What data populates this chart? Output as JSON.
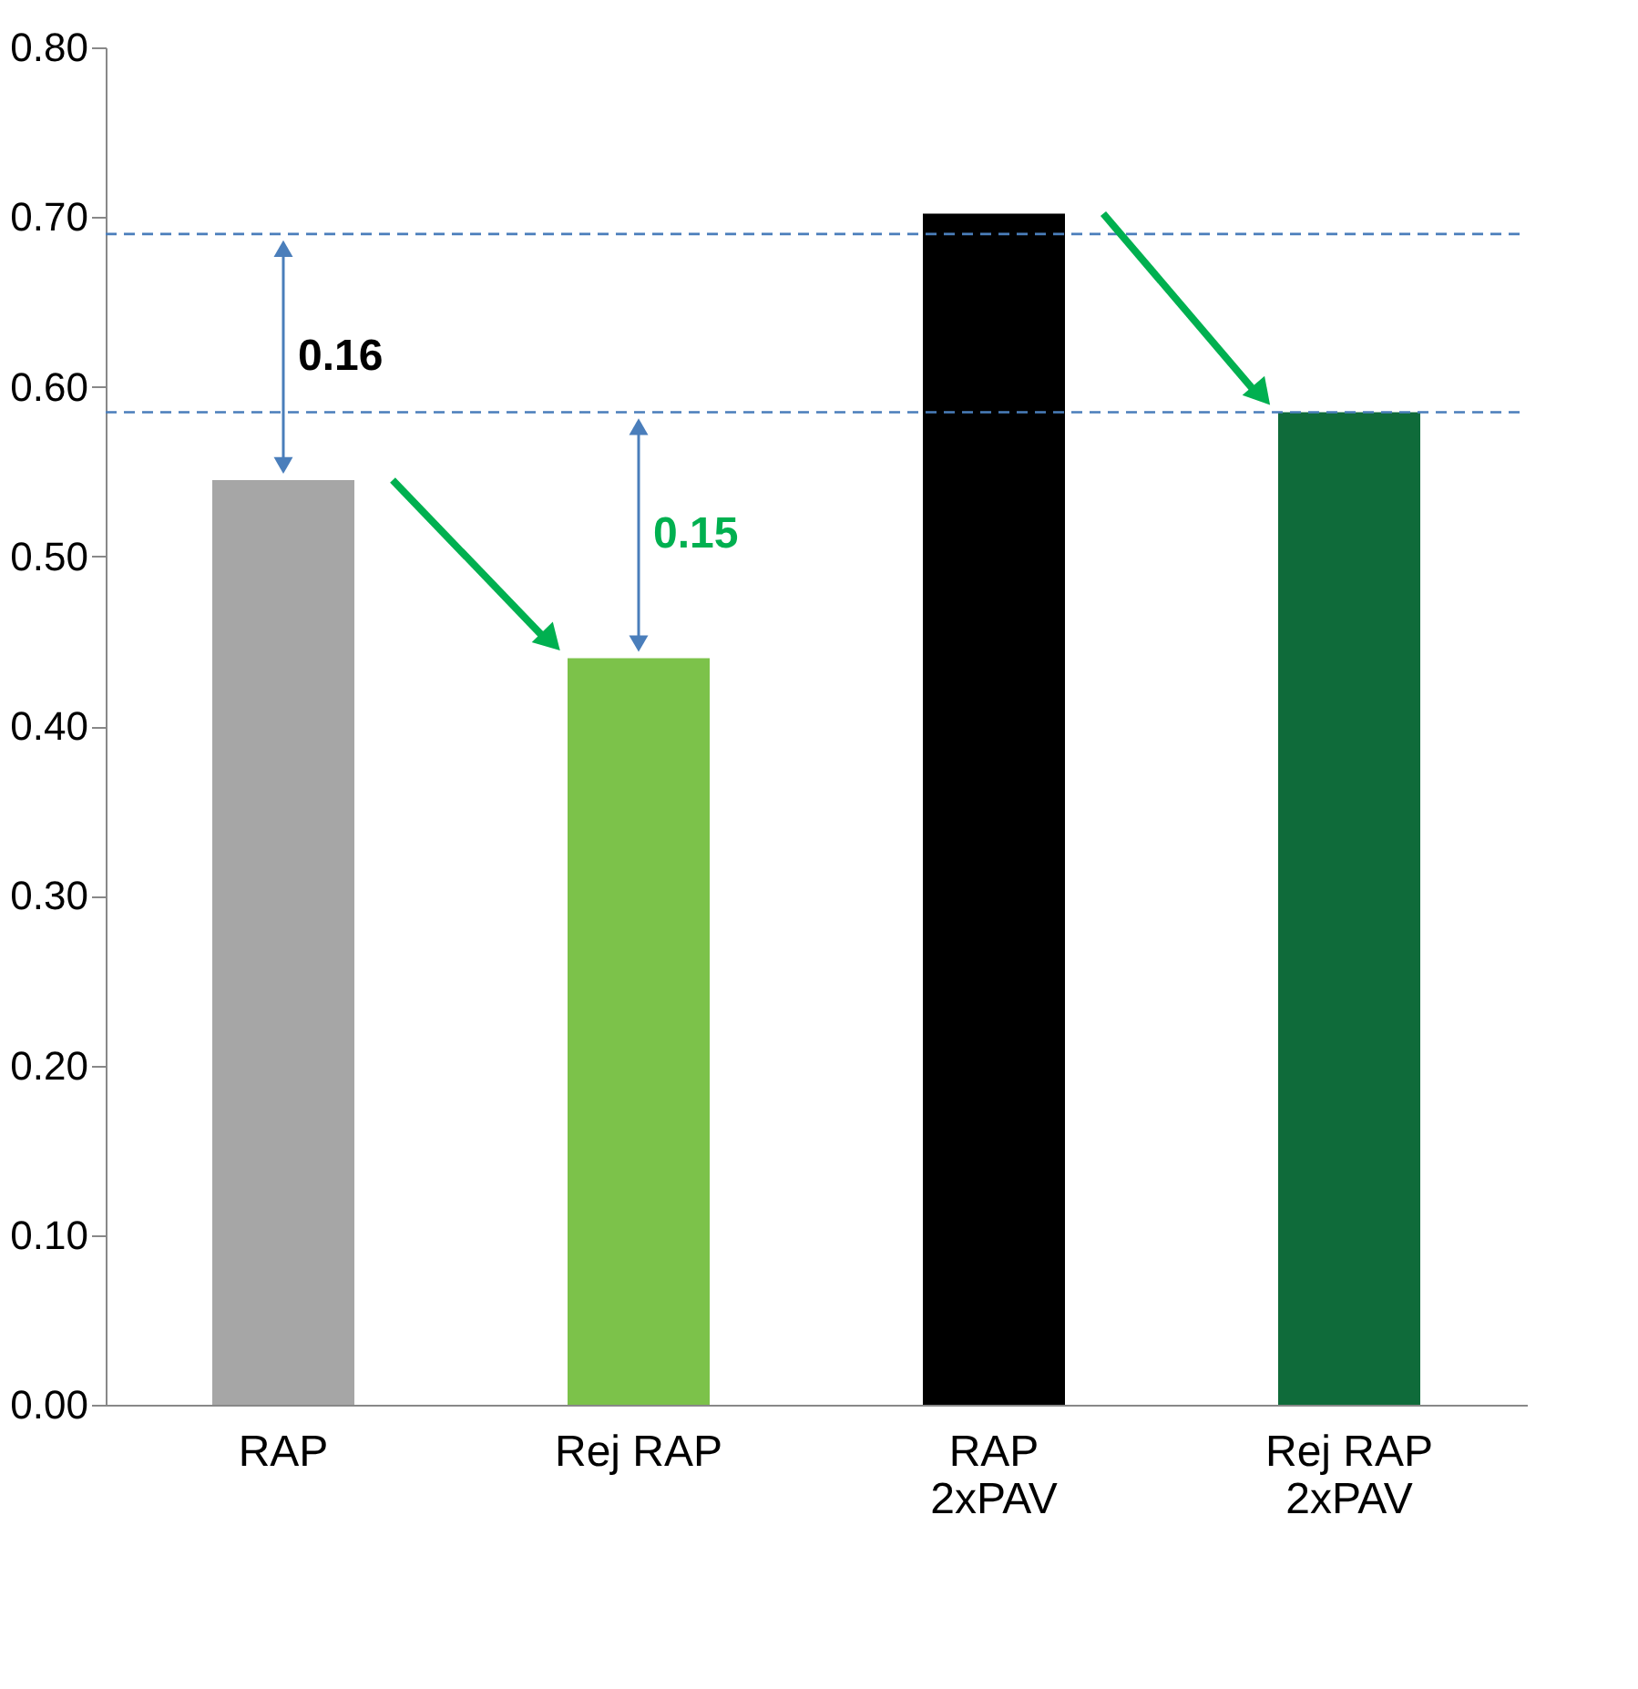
{
  "chart_data": {
    "type": "bar",
    "categories": [
      "RAP",
      "Rej RAP",
      "RAP\n2xPAV",
      "Rej RAP\n2xPAV"
    ],
    "values": [
      0.545,
      0.44,
      0.702,
      0.585
    ],
    "colors": [
      "#a6a6a6",
      "#7cc24a",
      "#000000",
      "#0f6b3a"
    ],
    "ylim": [
      0,
      0.8
    ],
    "yticks": [
      {
        "value": 0,
        "label": "0.00"
      },
      {
        "value": 0.1,
        "label": "0.10"
      },
      {
        "value": 0.2,
        "label": "0.20"
      },
      {
        "value": 0.3,
        "label": "0.30"
      },
      {
        "value": 0.4,
        "label": "0.40"
      },
      {
        "value": 0.5,
        "label": "0.50"
      },
      {
        "value": 0.6,
        "label": "0.60"
      },
      {
        "value": 0.7,
        "label": "0.70"
      },
      {
        "value": 0.8,
        "label": "0.80"
      }
    ],
    "grid": false,
    "legend": false,
    "ref_lines": [
      {
        "axis": "y",
        "value": 0.69,
        "color": "#4a7ebb",
        "line_style": "dashed"
      },
      {
        "axis": "y",
        "value": 0.585,
        "color": "#4a7ebb",
        "line_style": "dashed"
      }
    ],
    "annotations": [
      "0.16",
      "0.15"
    ]
  }
}
